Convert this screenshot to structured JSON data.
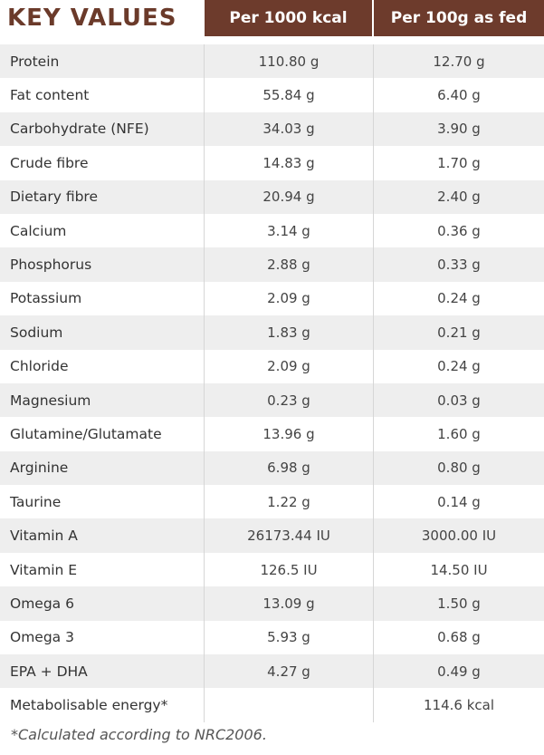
{
  "title": "KEY VALUES",
  "columns": [
    "Per 1000 kcal",
    "Per 100g as fed"
  ],
  "rows": [
    {
      "name": "Protein",
      "per1000": "110.80 g",
      "per100": "12.70 g"
    },
    {
      "name": "Fat content",
      "per1000": "55.84 g",
      "per100": "6.40 g"
    },
    {
      "name": "Carbohydrate (NFE)",
      "per1000": "34.03 g",
      "per100": "3.90 g"
    },
    {
      "name": "Crude fibre",
      "per1000": "14.83 g",
      "per100": "1.70 g"
    },
    {
      "name": "Dietary fibre",
      "per1000": "20.94 g",
      "per100": "2.40 g"
    },
    {
      "name": "Calcium",
      "per1000": "3.14 g",
      "per100": "0.36 g"
    },
    {
      "name": "Phosphorus",
      "per1000": "2.88 g",
      "per100": "0.33 g"
    },
    {
      "name": "Potassium",
      "per1000": "2.09 g",
      "per100": "0.24 g"
    },
    {
      "name": "Sodium",
      "per1000": "1.83 g",
      "per100": "0.21 g"
    },
    {
      "name": "Chloride",
      "per1000": "2.09 g",
      "per100": "0.24 g"
    },
    {
      "name": "Magnesium",
      "per1000": "0.23 g",
      "per100": "0.03 g"
    },
    {
      "name": "Glutamine/Glutamate",
      "per1000": "13.96 g",
      "per100": "1.60 g"
    },
    {
      "name": "Arginine",
      "per1000": "6.98 g",
      "per100": "0.80 g"
    },
    {
      "name": "Taurine",
      "per1000": "1.22 g",
      "per100": "0.14 g"
    },
    {
      "name": "Vitamin A",
      "per1000": "26173.44 IU",
      "per100": "3000.00 IU"
    },
    {
      "name": "Vitamin E",
      "per1000": "126.5 IU",
      "per100": "14.50 IU"
    },
    {
      "name": "Omega 6",
      "per1000": "13.09 g",
      "per100": "1.50 g"
    },
    {
      "name": "Omega 3",
      "per1000": "5.93 g",
      "per100": "0.68 g"
    },
    {
      "name": "EPA + DHA",
      "per1000": "4.27 g",
      "per100": "0.49 g"
    },
    {
      "name": "Metabolisable energy*",
      "per1000": "",
      "per100": "114.6 kcal"
    }
  ],
  "footnote": "*Calculated according to NRC2006.",
  "colors": {
    "accent": "#6d3b2c",
    "title": "#6b3a2a",
    "stripe": "#eeeeee"
  }
}
